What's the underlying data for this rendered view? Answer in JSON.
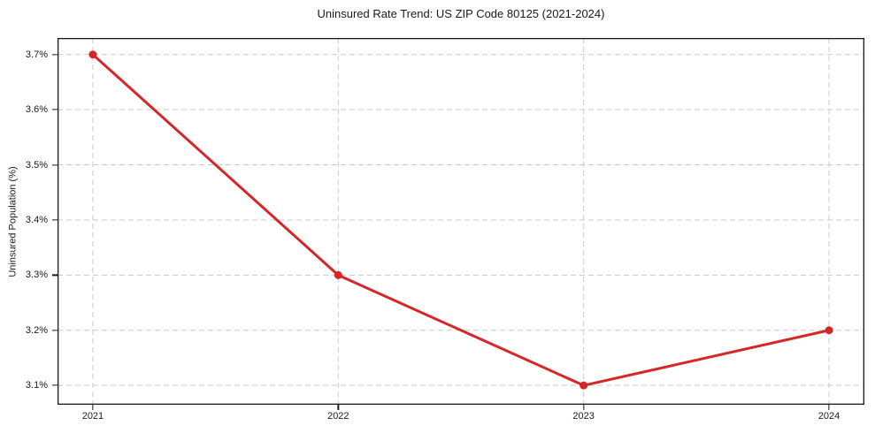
{
  "chart_data": {
    "type": "line",
    "title": "Uninsured Rate Trend: US ZIP Code 80125 (2021-2024)",
    "xlabel": "",
    "ylabel": "Uninsured Population (%)",
    "x": [
      2021,
      2022,
      2023,
      2024
    ],
    "values": [
      3.7,
      3.3,
      3.1,
      3.2
    ],
    "xticks": [
      2021,
      2022,
      2023,
      2024
    ],
    "xtick_labels": [
      "2021",
      "2022",
      "2023",
      "2024"
    ],
    "yticks": [
      3.1,
      3.2,
      3.3,
      3.4,
      3.5,
      3.6,
      3.7
    ],
    "ytick_labels": [
      "3.1%",
      "3.2%",
      "3.3%",
      "3.4%",
      "3.5%",
      "3.6%",
      "3.7%"
    ],
    "xlim": [
      2020.856,
      2024.144
    ],
    "ylim": [
      3.065,
      3.73
    ],
    "grid": true,
    "grid_style": "dashed",
    "legend": "none",
    "colors": {
      "line": "#d62728",
      "marker": "#d62728",
      "grid": "#c9c9c9",
      "spine": "#1a1a1a",
      "text": "#1a1a1a",
      "background": "#ffffff"
    },
    "line_width": 3,
    "marker_radius": 4.5
  }
}
